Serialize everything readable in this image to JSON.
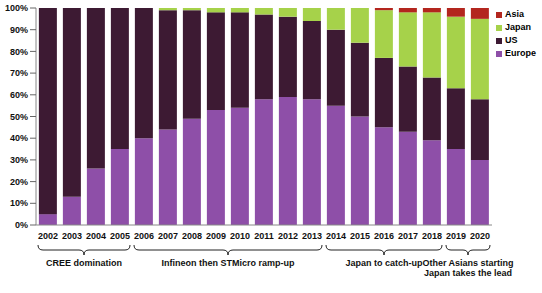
{
  "chart_data": {
    "type": "bar",
    "stacked": true,
    "grid": false,
    "legend": "upper right",
    "categories": [
      "2002",
      "2003",
      "2004",
      "2005",
      "2006",
      "2007",
      "2008",
      "2009",
      "2010",
      "2011",
      "2012",
      "2013",
      "2014",
      "2015",
      "2016",
      "2017",
      "2018",
      "2019",
      "2020"
    ],
    "series": [
      {
        "name": "Europe",
        "color": "#8e4fa8",
        "values": [
          5,
          13,
          26,
          35,
          40,
          44,
          49,
          53,
          54,
          58,
          59,
          58,
          55,
          50,
          45,
          43,
          39,
          35,
          30
        ]
      },
      {
        "name": "US",
        "color": "#3d1a33",
        "values": [
          95,
          87,
          74,
          65,
          60,
          55,
          50,
          45,
          44,
          39,
          37,
          36,
          35,
          34,
          32,
          30,
          29,
          28,
          28
        ]
      },
      {
        "name": "Japan",
        "color": "#a6d24a",
        "values": [
          0,
          0,
          0,
          0,
          0,
          1,
          1,
          2,
          2,
          3,
          4,
          6,
          10,
          16,
          22,
          25,
          30,
          33,
          37
        ]
      },
      {
        "name": "Asia",
        "color": "#b3261e",
        "values": [
          0,
          0,
          0,
          0,
          0,
          0,
          0,
          0,
          0,
          0,
          0,
          0,
          0,
          0,
          1,
          2,
          2,
          4,
          5
        ]
      }
    ],
    "ylim": [
      0,
      100
    ],
    "yticks": [
      {
        "value": 0,
        "label": "0%"
      },
      {
        "value": 10,
        "label": "10%"
      },
      {
        "value": 20,
        "label": "20%"
      },
      {
        "value": 30,
        "label": "30%"
      },
      {
        "value": 40,
        "label": "40%"
      },
      {
        "value": 50,
        "label": "50%"
      },
      {
        "value": 60,
        "label": "60%"
      },
      {
        "value": 70,
        "label": "70%"
      },
      {
        "value": 80,
        "label": "80%"
      },
      {
        "value": 90,
        "label": "90%"
      },
      {
        "value": 100,
        "label": "100%"
      }
    ],
    "annotations": [
      {
        "lines": [
          "CREE domination"
        ],
        "from": "2002",
        "to": "2005"
      },
      {
        "lines": [
          "Infineon then STMicro ramp-up"
        ],
        "from": "2006",
        "to": "2013"
      },
      {
        "lines": [
          "Japan to catch-up"
        ],
        "from": "2014",
        "to": "2018"
      },
      {
        "lines": [
          "Other Asians starting",
          "Japan takes the lead"
        ],
        "from": "2019",
        "to": "2020"
      }
    ]
  }
}
